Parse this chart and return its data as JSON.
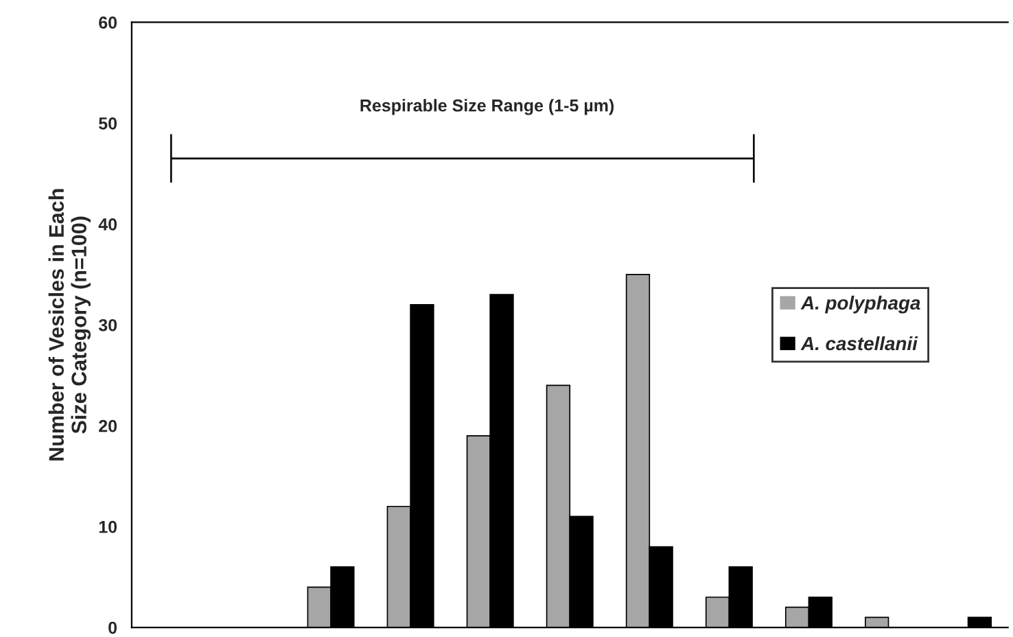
{
  "chart_data": {
    "type": "bar",
    "ylabel": "Number of Vesicles in Each\nSize Category (n=100)",
    "categories": [
      null,
      null,
      null,
      null,
      null,
      null,
      null,
      null,
      null,
      null,
      null
    ],
    "series": [
      {
        "name": "A. polyphaga",
        "color": "#a6a6a6",
        "values": [
          0,
          0,
          4,
          12,
          19,
          24,
          35,
          3,
          2,
          1,
          0
        ]
      },
      {
        "name": "A. castellanii",
        "color": "#000000",
        "values": [
          0,
          0,
          6,
          32,
          33,
          11,
          8,
          6,
          3,
          0,
          1
        ]
      }
    ],
    "ylim": [
      0,
      60
    ],
    "yticks": [
      0,
      10,
      20,
      30,
      40,
      50,
      60
    ],
    "annotations": [
      "Respirable Size Range (1-5 µm)"
    ],
    "tick_labels": "y",
    "grid": false,
    "legend": "right"
  }
}
